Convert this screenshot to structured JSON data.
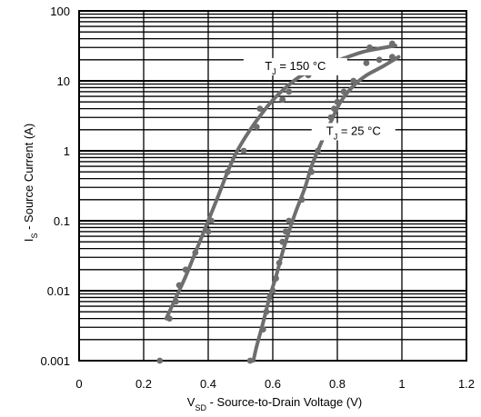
{
  "chart_data": {
    "type": "scatter",
    "xlabel": {
      "main": "V",
      "sub": "SD",
      "rest": " - Source-to-Drain Voltage (V)"
    },
    "ylabel": {
      "main": "I",
      "sub": "S",
      "rest": " - Source Current (A)"
    },
    "xlim": [
      0,
      1.2
    ],
    "ylim": [
      0.001,
      100
    ],
    "yscale": "log",
    "grid": true,
    "x_ticks": [
      "0",
      "0.2",
      "0.4",
      "0.6",
      "0.8",
      "1",
      "1.2"
    ],
    "y_ticks": [
      "0.001",
      "0.01",
      "0.1",
      "1",
      "10",
      "100"
    ],
    "line_color": "#6e6e6e",
    "series": [
      {
        "name": "T_J = 150 °C",
        "label": {
          "main": "T",
          "sub": "J",
          "rest": " = 150 °C"
        },
        "curve": [
          [
            0.27,
            0.004
          ],
          [
            0.3,
            0.008
          ],
          [
            0.33,
            0.016
          ],
          [
            0.36,
            0.035
          ],
          [
            0.4,
            0.1
          ],
          [
            0.43,
            0.22
          ],
          [
            0.46,
            0.5
          ],
          [
            0.49,
            1.0
          ],
          [
            0.53,
            2.0
          ],
          [
            0.57,
            3.6
          ],
          [
            0.6,
            5.3
          ],
          [
            0.64,
            8.0
          ],
          [
            0.69,
            12
          ],
          [
            0.75,
            16
          ],
          [
            0.82,
            21
          ],
          [
            0.88,
            26
          ],
          [
            0.93,
            29
          ],
          [
            0.98,
            32
          ]
        ],
        "points": [
          [
            0.25,
            0.001
          ],
          [
            0.28,
            0.004
          ],
          [
            0.3,
            0.007
          ],
          [
            0.31,
            0.012
          ],
          [
            0.33,
            0.02
          ],
          [
            0.36,
            0.035
          ],
          [
            0.4,
            0.07
          ],
          [
            0.41,
            0.1
          ],
          [
            0.46,
            0.5
          ],
          [
            0.51,
            1.0
          ],
          [
            0.55,
            2.2
          ],
          [
            0.56,
            4.0
          ],
          [
            0.63,
            5.4
          ],
          [
            0.65,
            7.0
          ],
          [
            0.71,
            12
          ],
          [
            0.76,
            16
          ],
          [
            0.82,
            20
          ],
          [
            0.9,
            30
          ],
          [
            0.97,
            34
          ]
        ]
      },
      {
        "name": "T_J = 25 °C",
        "label": {
          "main": "T",
          "sub": "J",
          "rest": " = 25 °C"
        },
        "curve": [
          [
            0.54,
            0.001
          ],
          [
            0.55,
            0.0016
          ],
          [
            0.57,
            0.0035
          ],
          [
            0.59,
            0.008
          ],
          [
            0.61,
            0.016
          ],
          [
            0.63,
            0.035
          ],
          [
            0.65,
            0.07
          ],
          [
            0.67,
            0.13
          ],
          [
            0.7,
            0.3
          ],
          [
            0.72,
            0.6
          ],
          [
            0.75,
            1.3
          ],
          [
            0.78,
            2.6
          ],
          [
            0.81,
            5.0
          ],
          [
            0.85,
            8.5
          ],
          [
            0.89,
            12
          ],
          [
            0.94,
            16
          ],
          [
            0.99,
            22
          ]
        ],
        "points": [
          [
            0.53,
            0.001
          ],
          [
            0.57,
            0.0028
          ],
          [
            0.58,
            0.005
          ],
          [
            0.59,
            0.008
          ],
          [
            0.6,
            0.01
          ],
          [
            0.61,
            0.015
          ],
          [
            0.62,
            0.025
          ],
          [
            0.63,
            0.05
          ],
          [
            0.64,
            0.07
          ],
          [
            0.65,
            0.1
          ],
          [
            0.69,
            0.2
          ],
          [
            0.72,
            0.5
          ],
          [
            0.74,
            1.0
          ],
          [
            0.76,
            1.8
          ],
          [
            0.78,
            3.0
          ],
          [
            0.79,
            4.0
          ],
          [
            0.8,
            5.0
          ],
          [
            0.82,
            7.0
          ],
          [
            0.85,
            10
          ],
          [
            0.89,
            18
          ],
          [
            0.93,
            20
          ],
          [
            0.97,
            22
          ]
        ]
      }
    ]
  }
}
